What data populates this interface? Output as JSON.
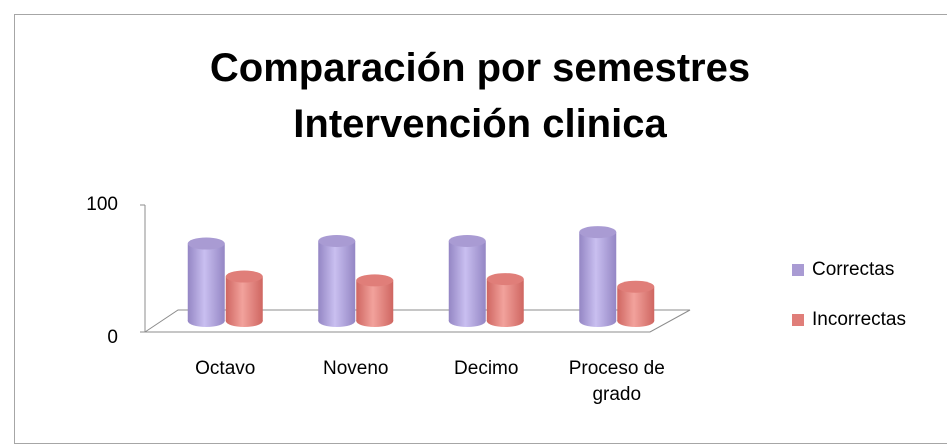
{
  "chart_data": {
    "type": "bar",
    "title": "Comparación por semestres Intervención clinica",
    "categories": [
      "Octavo",
      "Noveno",
      "Decimo",
      "Proceso de grado"
    ],
    "series": [
      {
        "name": "Correctas",
        "color": "#a99bd3",
        "values": [
          61,
          63,
          63,
          70
        ]
      },
      {
        "name": "Incorrectas",
        "color": "#e07e79",
        "values": [
          35,
          32,
          33,
          27
        ]
      }
    ],
    "ylim": [
      0,
      100
    ],
    "yticks": [
      0,
      100
    ],
    "grid": false,
    "legend": "right"
  }
}
